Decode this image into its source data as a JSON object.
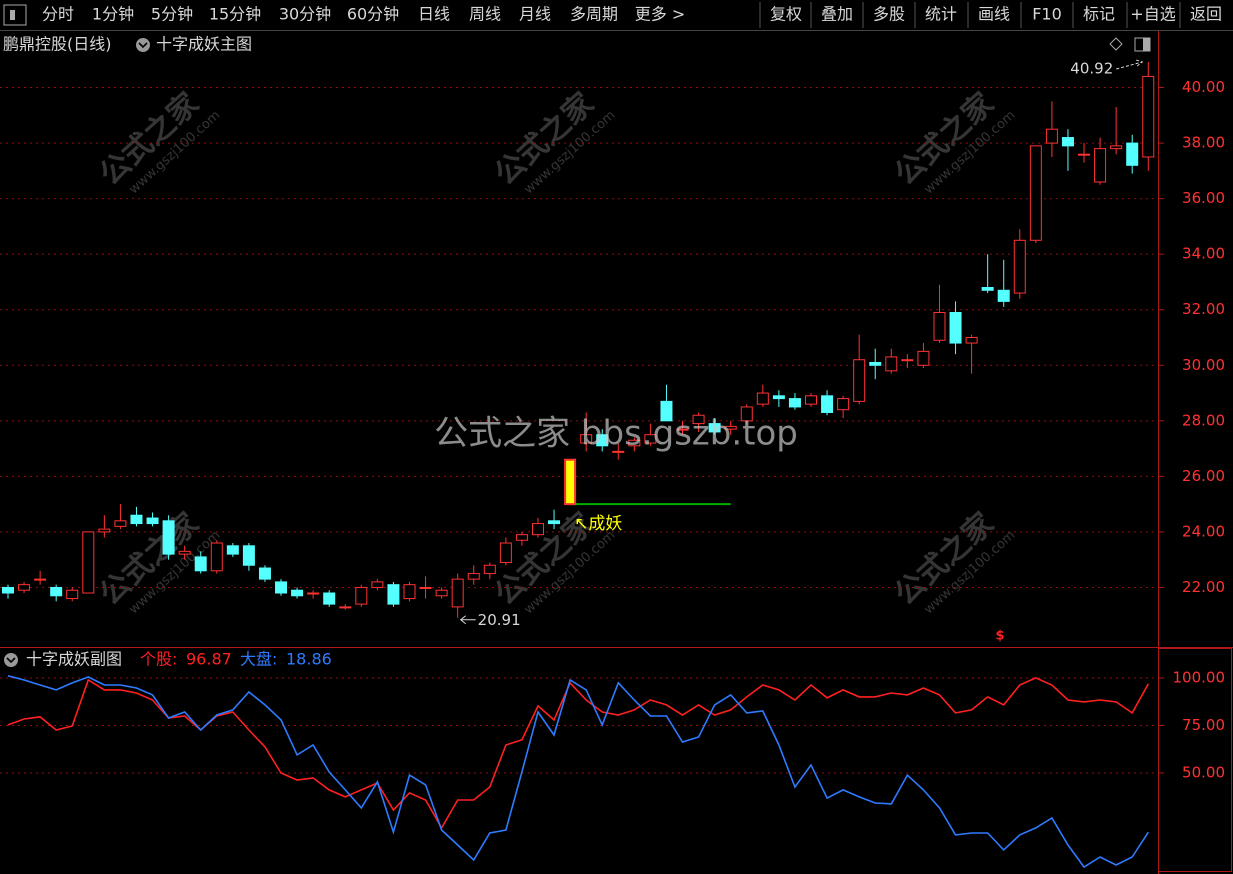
{
  "toolbar": {
    "left": [
      "分时",
      "1分钟",
      "5分钟",
      "15分钟",
      "30分钟",
      "60分钟",
      "日线",
      "周线",
      "月线",
      "多周期",
      "更多 >"
    ],
    "active": "日线",
    "right": [
      "复权",
      "叠加",
      "多股",
      "统计",
      "画线",
      "F10",
      "标记",
      "+自选",
      "返回"
    ]
  },
  "watermark": {
    "main": "公式之家 bbs.gszb.top",
    "logo": "公式之家",
    "url": "www.gszj100.com"
  },
  "chart_data": [
    {
      "type": "candlestick",
      "symbol": "鹏鼎控股(日线)",
      "title": "十字成妖主图",
      "open": [
        22.0,
        21.9,
        22.3,
        22.0,
        21.6,
        21.8,
        24.0,
        24.2,
        24.6,
        24.5,
        24.4,
        23.2,
        23.1,
        22.6,
        23.5,
        23.5,
        22.7,
        22.2,
        21.9,
        21.8,
        21.8,
        21.3,
        21.4,
        22.0,
        22.1,
        21.6,
        22.0,
        21.7,
        21.3,
        22.3,
        22.5,
        22.9,
        23.7,
        23.9,
        24.4,
        null,
        27.2,
        27.5,
        26.9,
        27.1,
        27.2,
        28.7,
        27.7,
        27.9,
        27.9,
        27.7,
        28.0,
        28.6,
        28.9,
        28.8,
        28.6,
        28.9,
        28.4,
        28.7,
        30.1,
        29.8,
        30.2,
        30.0,
        30.9,
        31.9,
        30.8,
        32.8,
        32.7,
        32.6,
        34.5,
        38.0,
        38.2,
        37.6,
        36.6,
        37.8,
        38.0,
        37.5
      ],
      "high": [
        22.1,
        22.2,
        22.6,
        22.1,
        22.0,
        24.0,
        24.6,
        25.0,
        24.9,
        24.7,
        24.6,
        23.5,
        23.3,
        23.7,
        23.6,
        23.6,
        22.8,
        22.3,
        22.0,
        21.9,
        21.9,
        21.4,
        22.1,
        22.3,
        22.2,
        22.2,
        22.4,
        22.0,
        22.5,
        22.8,
        22.9,
        23.8,
        24.0,
        24.5,
        24.8,
        null,
        28.3,
        27.7,
        27.2,
        27.4,
        27.9,
        29.3,
        28.0,
        28.3,
        28.1,
        28.0,
        28.6,
        29.3,
        29.1,
        29.0,
        29.0,
        29.1,
        28.9,
        31.1,
        30.6,
        30.6,
        30.4,
        30.8,
        32.9,
        32.3,
        31.1,
        34.0,
        33.8,
        34.9,
        37.9,
        39.5,
        38.5,
        38.0,
        38.2,
        39.3,
        38.3,
        40.92
      ],
      "low": [
        21.6,
        21.8,
        22.1,
        21.5,
        21.5,
        21.8,
        23.8,
        24.1,
        24.2,
        24.2,
        23.0,
        23.0,
        22.5,
        22.5,
        23.1,
        22.6,
        22.2,
        21.7,
        21.6,
        21.6,
        21.3,
        21.2,
        21.3,
        21.9,
        21.3,
        21.5,
        21.6,
        21.6,
        20.91,
        22.1,
        22.3,
        22.8,
        23.5,
        23.8,
        24.1,
        null,
        26.9,
        26.9,
        26.6,
        26.9,
        27.1,
        28.0,
        27.5,
        27.6,
        27.5,
        27.5,
        27.9,
        28.5,
        28.5,
        28.4,
        28.5,
        28.2,
        28.1,
        28.6,
        29.5,
        29.7,
        29.9,
        29.9,
        30.8,
        30.4,
        29.7,
        32.6,
        32.1,
        32.4,
        34.4,
        37.5,
        37.0,
        37.3,
        36.5,
        37.6,
        36.9,
        37.0
      ],
      "close": [
        21.8,
        22.1,
        22.3,
        21.7,
        21.9,
        24.0,
        24.1,
        24.4,
        24.3,
        24.3,
        23.2,
        23.3,
        22.6,
        23.6,
        23.2,
        22.8,
        22.3,
        21.8,
        21.7,
        21.8,
        21.4,
        21.3,
        22.0,
        22.2,
        21.4,
        22.1,
        22.0,
        21.9,
        22.3,
        22.5,
        22.8,
        23.6,
        23.9,
        24.3,
        24.3,
        null,
        27.5,
        27.1,
        26.9,
        27.3,
        27.5,
        28.0,
        27.7,
        28.2,
        27.6,
        27.8,
        28.5,
        29.0,
        28.8,
        28.5,
        28.9,
        28.3,
        28.8,
        30.2,
        30.0,
        30.3,
        30.2,
        30.5,
        31.9,
        30.8,
        31.0,
        32.7,
        32.3,
        34.5,
        37.9,
        38.5,
        37.9,
        37.6,
        37.8,
        37.9,
        37.2,
        40.4
      ],
      "up_color": "#ff3232",
      "down_color": "#54ffff",
      "max_label": 40.92,
      "min_label": 20.91,
      "signal": {
        "label": "↖成妖",
        "open": 25.0,
        "close": 26.6,
        "color": "#ffff00",
        "level": 25.0,
        "level_color": "#00b000"
      },
      "bottom_mark": "$",
      "ylim": [
        20,
        42
      ],
      "yticks": [
        {
          "value": 22,
          "label": "22.00"
        },
        {
          "value": 24,
          "label": "24.00"
        },
        {
          "value": 26,
          "label": "26.00"
        },
        {
          "value": 28,
          "label": "28.00"
        },
        {
          "value": 30,
          "label": "30.00"
        },
        {
          "value": 32,
          "label": "32.00"
        },
        {
          "value": 34,
          "label": "34.00"
        },
        {
          "value": 36,
          "label": "36.00"
        },
        {
          "value": 38,
          "label": "38.00"
        },
        {
          "value": 40,
          "label": "40.00"
        }
      ],
      "grid": true
    },
    {
      "type": "line",
      "title": "十字成妖副图",
      "series": [
        {
          "name": "个股:",
          "color": "#ff2020",
          "values": [
            75.3,
            78.4,
            79.5,
            72.6,
            74.7,
            98.9,
            93.7,
            93.7,
            92.1,
            88.4,
            78.9,
            80.0,
            72.6,
            80.0,
            82.1,
            72.6,
            63.7,
            50.0,
            46.3,
            47.4,
            41.1,
            37.4,
            41.1,
            44.7,
            30.5,
            39.5,
            35.8,
            21.1,
            35.8,
            35.8,
            42.6,
            64.7,
            67.4,
            85.3,
            77.9,
            97.4,
            88.4,
            82.1,
            80.5,
            83.2,
            88.4,
            85.8,
            80.5,
            85.8,
            80.5,
            83.2,
            90.0,
            96.3,
            93.7,
            88.4,
            96.3,
            89.5,
            93.7,
            90.0,
            90.0,
            92.1,
            91.1,
            94.7,
            91.1,
            81.6,
            83.2,
            90.0,
            85.8,
            96.3,
            100.0,
            96.3,
            88.4,
            87.4,
            88.4,
            87.4,
            81.6,
            96.87
          ]
        },
        {
          "name": "大盘:",
          "color": "#2f7bff",
          "values": [
            101.1,
            98.9,
            96.3,
            93.7,
            97.4,
            100.5,
            96.3,
            96.3,
            94.7,
            91.1,
            78.9,
            82.1,
            72.6,
            80.5,
            83.2,
            92.6,
            85.8,
            77.9,
            59.5,
            64.7,
            50.5,
            41.1,
            31.6,
            45.3,
            18.9,
            48.9,
            43.7,
            20.0,
            12.1,
            4.2,
            18.4,
            20.0,
            50.5,
            82.1,
            70.0,
            98.9,
            93.7,
            75.3,
            97.4,
            88.4,
            80.0,
            80.0,
            66.3,
            68.9,
            85.8,
            91.1,
            81.6,
            82.6,
            64.7,
            42.6,
            54.2,
            36.8,
            41.1,
            37.4,
            34.2,
            33.7,
            48.9,
            41.1,
            31.6,
            17.4,
            18.4,
            18.4,
            9.5,
            17.4,
            21.1,
            26.3,
            12.1,
            0.5,
            5.8,
            1.6,
            5.8,
            18.86
          ]
        }
      ],
      "ylim": [
        0,
        114.7
      ],
      "yticks": [
        {
          "value": 50,
          "label": "50.00"
        },
        {
          "value": 75,
          "label": "75.00"
        },
        {
          "value": 100,
          "label": "100.00"
        }
      ],
      "grid": true
    }
  ]
}
